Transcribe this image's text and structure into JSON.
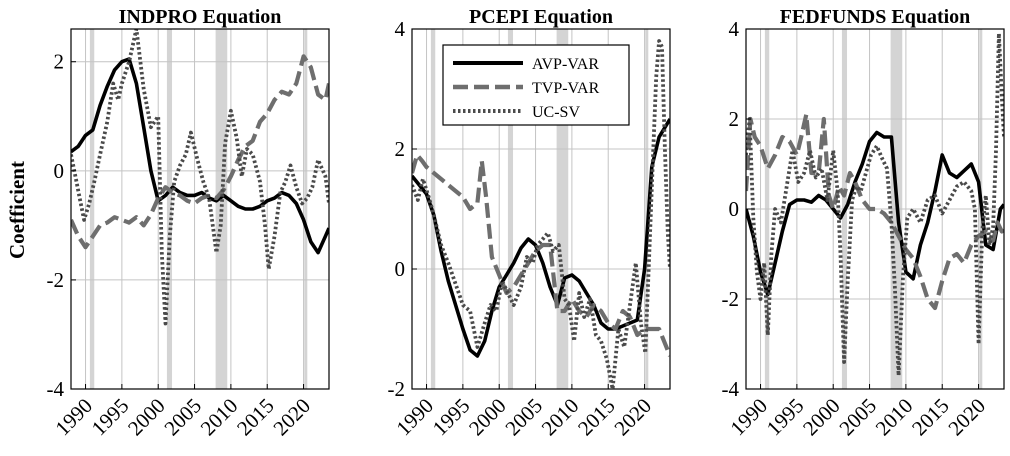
{
  "ylabel": "Coefficient",
  "legend": {
    "placement": "top-center",
    "entries": [
      "AVP-VAR",
      "TVP-VAR",
      "UC-SV"
    ]
  },
  "colors": {
    "avp": "#000000",
    "tvp": "#6e6e6e",
    "ucsv": "#4a4a4a",
    "recession": "#d4d4d4",
    "grid": "#c4c4c4"
  },
  "chart_data": [
    {
      "type": "line",
      "title": "INDPRO Equation",
      "xlim": [
        1988,
        2023.5
      ],
      "ylim": [
        -4,
        2.6
      ],
      "yticks": [
        -4,
        -2,
        0,
        2
      ],
      "xticks": [
        1990,
        1995,
        2000,
        2005,
        2010,
        2015,
        2020
      ],
      "recessions": [
        [
          1990.6,
          1991.2
        ],
        [
          2001.2,
          2001.9
        ],
        [
          2007.9,
          2009.5
        ],
        [
          2020.1,
          2020.4
        ]
      ],
      "grid": true,
      "series": [
        {
          "name": "AVP-VAR",
          "x": [
            1988,
            1989,
            1990,
            1991,
            1992,
            1993,
            1994,
            1995,
            1996,
            1997,
            1998,
            1999,
            2000,
            2001,
            2002,
            2003,
            2004,
            2005,
            2006,
            2007,
            2008,
            2009,
            2010,
            2011,
            2012,
            2013,
            2014,
            2015,
            2016,
            2017,
            2018,
            2019,
            2020,
            2021,
            2022,
            2023,
            2023.5
          ],
          "y": [
            0.35,
            0.45,
            0.65,
            0.75,
            1.2,
            1.55,
            1.85,
            2.0,
            2.05,
            1.6,
            0.8,
            0.0,
            -0.55,
            -0.45,
            -0.3,
            -0.4,
            -0.45,
            -0.45,
            -0.4,
            -0.5,
            -0.55,
            -0.45,
            -0.55,
            -0.65,
            -0.7,
            -0.7,
            -0.65,
            -0.55,
            -0.5,
            -0.4,
            -0.45,
            -0.6,
            -0.9,
            -1.3,
            -1.5,
            -1.2,
            -1.05
          ]
        },
        {
          "name": "TVP-VAR",
          "x": [
            1988,
            1989,
            1990,
            1991,
            1992,
            1993,
            1994,
            1995,
            1996,
            1997,
            1998,
            1999,
            2000,
            2001,
            2002,
            2003,
            2004,
            2005,
            2006,
            2007,
            2008,
            2009,
            2010,
            2011,
            2012,
            2013,
            2014,
            2015,
            2016,
            2017,
            2018,
            2019,
            2020,
            2021,
            2022,
            2023,
            2023.5
          ],
          "y": [
            -0.9,
            -1.2,
            -1.4,
            -1.2,
            -1.0,
            -0.95,
            -0.85,
            -0.9,
            -0.95,
            -0.85,
            -1.0,
            -0.8,
            -0.5,
            -0.3,
            -0.4,
            -0.45,
            -0.55,
            -0.6,
            -0.5,
            -0.45,
            -0.5,
            -0.35,
            -0.1,
            0.2,
            0.45,
            0.55,
            0.9,
            1.05,
            1.3,
            1.45,
            1.4,
            1.6,
            2.1,
            1.9,
            1.4,
            1.3,
            1.6
          ]
        },
        {
          "name": "UC-SV",
          "x": [
            1988,
            1988.6,
            1989.2,
            1989.8,
            1990.5,
            1991.2,
            1992,
            1993,
            1993.8,
            1994.5,
            1995,
            1996,
            1997,
            1998,
            1999,
            2000,
            2000.5,
            2001,
            2001.6,
            2002.2,
            2003,
            2003.8,
            2004.5,
            2005.4,
            2006.2,
            2007,
            2008,
            2008.6,
            2009.2,
            2010,
            2010.8,
            2011.5,
            2012.2,
            2013,
            2014,
            2014.7,
            2015.2,
            2016,
            2016.8,
            2017.5,
            2018.2,
            2019,
            2019.8,
            2020.5,
            2021.2,
            2022,
            2023,
            2023.5
          ],
          "y": [
            0.3,
            -0.1,
            -0.5,
            -0.9,
            -0.6,
            -0.2,
            0.3,
            0.9,
            1.6,
            1.3,
            1.6,
            2.0,
            2.6,
            1.5,
            0.8,
            1.0,
            -1.5,
            -2.8,
            -1.2,
            -0.2,
            0.1,
            0.3,
            0.7,
            0.2,
            -0.2,
            -0.5,
            -1.5,
            -1.0,
            0.5,
            1.1,
            0.6,
            -0.1,
            0.4,
            0.3,
            -0.2,
            -1.0,
            -1.8,
            -1.2,
            -0.4,
            -0.2,
            0.1,
            -0.3,
            -0.6,
            -0.5,
            -0.3,
            0.2,
            -0.1,
            -0.6
          ]
        }
      ]
    },
    {
      "type": "line",
      "title": "PCEPI Equation",
      "xlim": [
        1988,
        2023.5
      ],
      "ylim": [
        -2,
        4
      ],
      "yticks": [
        -2,
        0,
        2,
        4
      ],
      "xticks": [
        1990,
        1995,
        2000,
        2005,
        2010,
        2015,
        2020
      ],
      "recessions": [
        [
          1990.6,
          1991.2
        ],
        [
          2001.2,
          2001.9
        ],
        [
          2007.9,
          2009.5
        ],
        [
          2020.1,
          2020.4
        ]
      ],
      "grid": true,
      "series": [
        {
          "name": "AVP-VAR",
          "x": [
            1988,
            1989,
            1990,
            1991,
            1992,
            1993,
            1994,
            1995,
            1996,
            1997,
            1998,
            1999,
            2000,
            2001,
            2002,
            2003,
            2004,
            2005,
            2006,
            2007,
            2008,
            2009,
            2010,
            2011,
            2012,
            2013,
            2014,
            2015,
            2016,
            2017,
            2018,
            2019,
            2020,
            2021,
            2022,
            2023,
            2023.5
          ],
          "y": [
            1.55,
            1.4,
            1.25,
            0.9,
            0.3,
            -0.2,
            -0.6,
            -1.0,
            -1.35,
            -1.45,
            -1.2,
            -0.7,
            -0.3,
            -0.1,
            0.1,
            0.35,
            0.5,
            0.4,
            0.1,
            -0.3,
            -0.6,
            -0.15,
            -0.1,
            -0.2,
            -0.4,
            -0.6,
            -0.9,
            -1.0,
            -1.0,
            -0.95,
            -0.9,
            -0.85,
            0.0,
            1.7,
            2.2,
            2.4,
            2.5
          ]
        },
        {
          "name": "TVP-VAR",
          "x": [
            1988,
            1988.7,
            1989.4,
            1990,
            1991,
            1992,
            1993,
            1994,
            1995,
            1996,
            1997,
            1997.6,
            1998.2,
            1999,
            2000,
            2001,
            2002,
            2003,
            2004,
            2005,
            2006,
            2007,
            2008,
            2009,
            2010,
            2011,
            2012,
            2013,
            2014,
            2015,
            2016,
            2017,
            2018,
            2019,
            2020,
            2021,
            2022,
            2023,
            2023.5
          ],
          "y": [
            1.6,
            1.9,
            1.8,
            1.7,
            1.6,
            1.5,
            1.4,
            1.3,
            1.2,
            1.0,
            1.1,
            1.8,
            1.2,
            0.2,
            -0.1,
            -0.4,
            -0.3,
            -0.1,
            0.1,
            0.3,
            0.4,
            0.4,
            -0.7,
            -0.7,
            -0.5,
            -0.7,
            -0.8,
            -0.6,
            -0.7,
            -0.9,
            -1.0,
            -0.7,
            -0.8,
            -1.1,
            -1.0,
            -1.0,
            -1.0,
            -1.3,
            -1.45
          ]
        },
        {
          "name": "UC-SV",
          "x": [
            1988,
            1988.8,
            1989.5,
            1990.3,
            1991,
            1992,
            1993,
            1994,
            1995,
            1996,
            1997,
            1998,
            1998.8,
            1999.6,
            2000.4,
            2001.2,
            2002,
            2003,
            2003.8,
            2004.6,
            2005.3,
            2006,
            2006.7,
            2007.4,
            2008.2,
            2009,
            2009.6,
            2010.3,
            2011,
            2011.7,
            2012.5,
            2013.3,
            2014,
            2014.8,
            2015.6,
            2016.4,
            2017.2,
            2018,
            2018.8,
            2019.5,
            2020.1,
            2020.6,
            2021.2,
            2021.6,
            2022,
            2022.4,
            2022.8,
            2023.2,
            2023.5
          ],
          "y": [
            1.4,
            1.15,
            1.5,
            1.2,
            0.9,
            0.4,
            0.1,
            -0.25,
            -0.6,
            -0.7,
            -1.3,
            -0.9,
            -0.6,
            -0.7,
            -0.2,
            -0.4,
            -0.6,
            -0.3,
            0.2,
            0.1,
            0.4,
            0.5,
            0.6,
            0.3,
            0.4,
            -0.5,
            -0.6,
            -1.2,
            -0.4,
            -0.8,
            -0.5,
            -1.1,
            -1.2,
            -1.5,
            -2.0,
            -1.0,
            -1.3,
            -0.6,
            0.1,
            -0.9,
            -1.4,
            0.1,
            2.0,
            3.2,
            3.8,
            3.7,
            2.0,
            0.6,
            0.0
          ]
        }
      ]
    },
    {
      "type": "line",
      "title": "FEDFUNDS Equation",
      "xlim": [
        1988,
        2023.5
      ],
      "ylim": [
        -4,
        4
      ],
      "yticks": [
        -4,
        -2,
        0,
        2,
        4
      ],
      "xticks": [
        1990,
        1995,
        2000,
        2005,
        2010,
        2015,
        2020
      ],
      "recessions": [
        [
          1990.6,
          1991.2
        ],
        [
          2001.2,
          2001.9
        ],
        [
          2007.9,
          2009.5
        ],
        [
          2020.1,
          2020.4
        ]
      ],
      "grid": true,
      "series": [
        {
          "name": "AVP-VAR",
          "x": [
            1988,
            1989,
            1990,
            1991,
            1992,
            1993,
            1994,
            1995,
            1996,
            1997,
            1998,
            1999,
            2000,
            2001,
            2002,
            2003,
            2004,
            2005,
            2006,
            2007,
            2008,
            2009,
            2010,
            2011,
            2012,
            2013,
            2014,
            2015,
            2016,
            2017,
            2018,
            2019,
            2020,
            2021,
            2022,
            2023,
            2023.5
          ],
          "y": [
            0.0,
            -0.6,
            -1.4,
            -1.9,
            -1.2,
            -0.5,
            0.1,
            0.2,
            0.2,
            0.15,
            0.3,
            0.2,
            0.0,
            -0.2,
            0.1,
            0.6,
            1.0,
            1.5,
            1.7,
            1.6,
            1.6,
            -0.3,
            -1.4,
            -1.55,
            -0.8,
            -0.3,
            0.4,
            1.2,
            0.8,
            0.7,
            0.85,
            1.0,
            0.6,
            -0.8,
            -0.9,
            0.0,
            0.1
          ]
        },
        {
          "name": "TVP-VAR",
          "x": [
            1988,
            1988.6,
            1989.2,
            1990,
            1991,
            1992,
            1993,
            1994,
            1995,
            1995.6,
            1996.3,
            1997,
            1998,
            1998.7,
            1999.4,
            2000,
            2000.8,
            2001.5,
            2002.3,
            2003,
            2004,
            2005,
            2006,
            2007,
            2008,
            2009,
            2010,
            2011,
            2012,
            2013,
            2014,
            2015,
            2016,
            2017,
            2018,
            2019,
            2020,
            2021,
            2022,
            2022.6,
            2023.2,
            2023.5
          ],
          "y": [
            0.4,
            2.0,
            1.6,
            1.4,
            0.9,
            1.2,
            1.6,
            1.5,
            1.2,
            1.6,
            2.1,
            0.8,
            0.8,
            2.0,
            0.3,
            0.0,
            0.5,
            0.3,
            0.8,
            0.6,
            0.2,
            0.0,
            0.0,
            -0.1,
            -0.3,
            -0.6,
            -0.9,
            -1.1,
            -1.5,
            -2.0,
            -2.2,
            -1.6,
            -1.1,
            -1.0,
            -1.2,
            -0.8,
            -0.6,
            -0.5,
            -0.7,
            -0.3,
            -0.5,
            -0.4
          ]
        },
        {
          "name": "UC-SV",
          "x": [
            1988,
            1988.5,
            1989,
            1989.5,
            1990,
            1990.5,
            1991,
            1991.5,
            1992,
            1992.8,
            1993.6,
            1994.4,
            1995.2,
            1996,
            1996.8,
            1997.6,
            1998.4,
            1999.2,
            2000,
            2000.6,
            2001,
            2001.5,
            2002,
            2002.6,
            2003.2,
            2003.8,
            2004.5,
            2005.2,
            2006,
            2006.8,
            2007.4,
            2008,
            2008.5,
            2009,
            2009.6,
            2010.2,
            2011,
            2012,
            2013,
            2014,
            2015,
            2016,
            2017,
            2018,
            2019,
            2019.5,
            2020,
            2020.5,
            2021,
            2021.5,
            2022,
            2022.4,
            2022.8,
            2023.2,
            2023.5
          ],
          "y": [
            1.2,
            2.0,
            -0.2,
            -1.4,
            -2.0,
            -1.2,
            -2.8,
            -1.0,
            0.0,
            -0.3,
            0.5,
            1.3,
            0.6,
            0.8,
            1.3,
            0.7,
            0.9,
            0.2,
            1.3,
            0.4,
            -1.0,
            -3.4,
            -1.6,
            0.2,
            0.5,
            0.4,
            0.8,
            1.2,
            1.4,
            1.1,
            0.9,
            -0.3,
            -1.8,
            -3.7,
            -1.5,
            -0.2,
            0.0,
            -0.3,
            0.2,
            0.3,
            -0.1,
            0.2,
            0.5,
            0.6,
            0.4,
            0.0,
            -3.0,
            -0.5,
            0.3,
            -0.8,
            -0.4,
            1.3,
            3.9,
            2.5,
            1.6
          ]
        }
      ]
    }
  ]
}
